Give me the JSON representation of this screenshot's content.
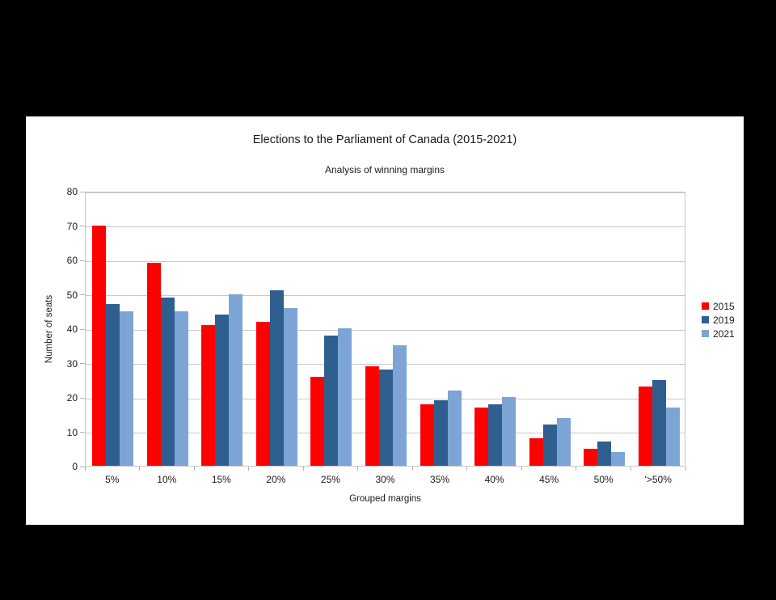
{
  "page": {
    "background_color": "#000000",
    "panel_color": "#ffffff"
  },
  "chart_data": {
    "type": "bar",
    "title": "Elections to the Parliament of Canada (2015-2021)",
    "subtitle": "Analysis of winning margins",
    "xlabel": "Grouped margins",
    "ylabel": "Number of seats",
    "categories": [
      "5%",
      "10%",
      "15%",
      "20%",
      "25%",
      "30%",
      "35%",
      "40%",
      "45%",
      "50%",
      "'>50%"
    ],
    "series": [
      {
        "name": "2015",
        "color": "#ff0000",
        "values": [
          70,
          59,
          41,
          42,
          26,
          29,
          18,
          17,
          8,
          5,
          23
        ]
      },
      {
        "name": "2019",
        "color": "#2e5f8f",
        "values": [
          47,
          49,
          44,
          51,
          38,
          28,
          19,
          18,
          12,
          7,
          25
        ]
      },
      {
        "name": "2021",
        "color": "#7ca5d6",
        "values": [
          45,
          45,
          50,
          46,
          40,
          35,
          22,
          20,
          14,
          4,
          17
        ]
      }
    ],
    "ylim": [
      0,
      80
    ],
    "ytick_step": 10,
    "yticks": [
      "0",
      "10",
      "20",
      "30",
      "40",
      "50",
      "60",
      "70",
      "80"
    ],
    "grid": true,
    "gridline_color": "#c9c9c9",
    "axis_color": "#b3b3b3",
    "legend_position": "right",
    "legend_entries": [
      "2015",
      "2019",
      "2021"
    ]
  }
}
